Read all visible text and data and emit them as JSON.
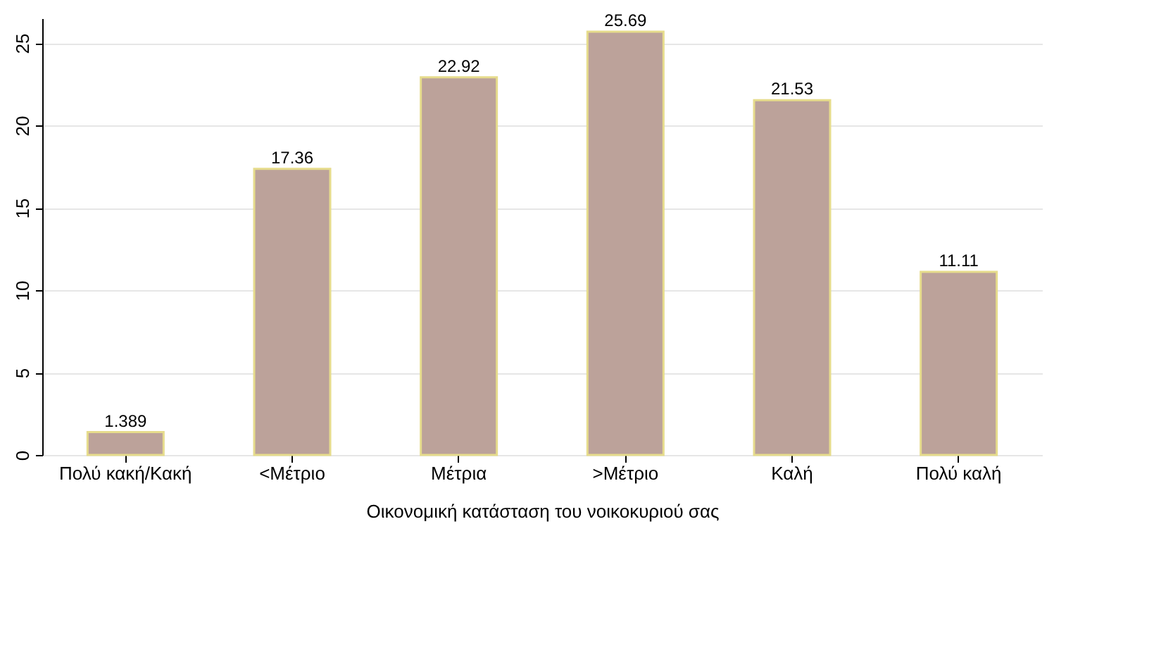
{
  "chart_data": {
    "type": "bar",
    "xlabel": "Οικονομική κατάσταση του νοικοκυριού σας",
    "categories": [
      "Πολύ κακή/Κακή",
      "<Μέτριο",
      "Μέτρια",
      ">Μέτριο",
      "Καλή",
      "Πολύ καλή"
    ],
    "values": [
      1.389,
      17.36,
      22.92,
      25.69,
      21.53,
      11.11
    ],
    "color": "#bca29a",
    "ylim": [
      0,
      26.5
    ],
    "yticks": [
      0,
      5,
      10,
      15,
      20,
      25
    ],
    "grid": "y",
    "data_labels": true
  }
}
